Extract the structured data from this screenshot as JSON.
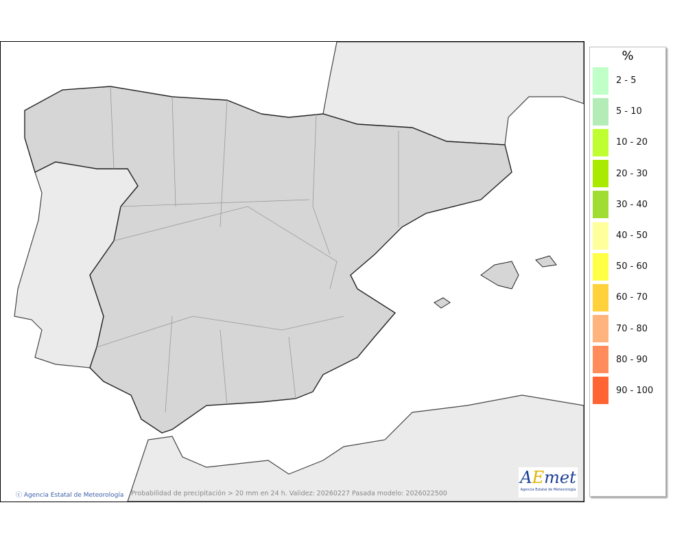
{
  "map": {
    "credit": "Agencia Estatal de Meteorología",
    "caption": "Probabilidad de precipitación > 20 mm en 24 h. Validez: 20260227 Pasada modelo: 2026022500",
    "logo_text": "AEMet",
    "logo_subtext": "Agencia Estatal de Meteorología",
    "colors": {
      "sea": "#ffffff",
      "foreign_land": "#ebebeb",
      "spain_land": "#d6d6d6"
    }
  },
  "legend": {
    "title": "%",
    "items": [
      {
        "label": "2 - 5",
        "color": "#c0ffc8"
      },
      {
        "label": "5 - 10",
        "color": "#b4ecb8"
      },
      {
        "label": "10 - 20",
        "color": "#bfff32"
      },
      {
        "label": "20 - 30",
        "color": "#aaea00"
      },
      {
        "label": "30 - 40",
        "color": "#a0dc32"
      },
      {
        "label": "40 - 50",
        "color": "#ffff9c"
      },
      {
        "label": "50 - 60",
        "color": "#ffff46"
      },
      {
        "label": "60 - 70",
        "color": "#ffd23c"
      },
      {
        "label": "70 - 80",
        "color": "#ffb47d"
      },
      {
        "label": "80 - 90",
        "color": "#ff8c5a"
      },
      {
        "label": "90 - 100",
        "color": "#ff6432"
      }
    ]
  }
}
